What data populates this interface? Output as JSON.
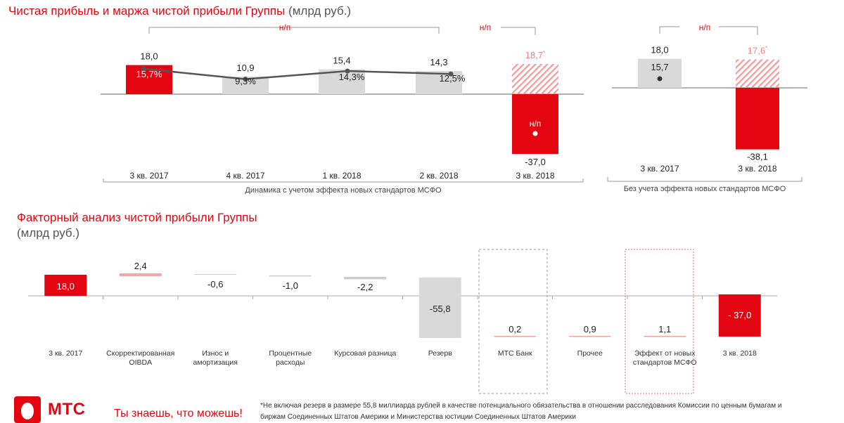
{
  "chart1": {
    "title": "Чистая прибыль и маржа чистой прибыли Группы",
    "unit": "(млрд руб.)",
    "np_label": "н/п",
    "footnote_mark": "*",
    "categories": [
      "3 кв. 2017",
      "4 кв. 2017",
      "1 кв. 2018",
      "2 кв. 2018",
      "3 кв. 2018"
    ],
    "caption": "Динамика с учетом эффекта новых стандартов МСФО",
    "value_labels": [
      "18,0",
      "10,9",
      "15,4",
      "14,3",
      "-37,0"
    ],
    "margin_labels": [
      "15,7%",
      "9,3%",
      "14,3%",
      "12,5%",
      "н/п"
    ],
    "ghost_label": "18,7",
    "colors": {
      "red": "#e30611",
      "gray": "#d9d9d9",
      "line": "#555555",
      "ghost": "#f08080"
    }
  },
  "chart2": {
    "categories": [
      "3 кв. 2017",
      "3 кв. 2018"
    ],
    "caption": "Без учета эффекта новых стандартов МСФО",
    "value_labels": [
      "18,0",
      "-38,1"
    ],
    "inner_labels": [
      "15,7"
    ],
    "ghost_label": "17,6"
  },
  "chart_data": [
    {
      "type": "bar",
      "title": "Чистая прибыль и маржа чистой прибыли Группы (млрд руб.)",
      "categories": [
        "3 кв. 2017",
        "4 кв. 2017",
        "1 кв. 2018",
        "2 кв. 2018",
        "3 кв. 2018"
      ],
      "series": [
        {
          "name": "",
          "values": [
            18.0,
            10.9,
            15.4,
            14.3,
            -37.0
          ]
        },
        {
          "name": "",
          "values": [
            15.7,
            9.3,
            14.3,
            12.5,
            null
          ]
        }
      ],
      "excluded_provision_profit": {
        "category": "3 кв. 2018",
        "value": 18.7
      },
      "xlabel": "Динамика с учетом эффекта новых стандартов МСФО"
    },
    {
      "type": "bar",
      "categories": [
        "3 кв. 2017",
        "3 кв. 2018"
      ],
      "series": [
        {
          "name": "",
          "values": [
            18.0,
            -38.1
          ]
        }
      ],
      "excluded_provision_profit": {
        "category": "3 кв. 2018",
        "value": 17.6
      },
      "xlabel": "Без учета эффекта новых стандартов МСФО"
    },
    {
      "type": "bar",
      "title": "Факторный анализ чистой прибыли Группы (млрд руб.)",
      "categories": [
        "3 кв. 2017",
        "Скорректированная OIBDA",
        "Износ и амортизация",
        "Процентные расходы",
        "Курсовая разница",
        "Резерв",
        "МТС Банк",
        "Прочее",
        "Эффект от новых стандартов МСФО",
        "3 кв. 2018"
      ],
      "values": [
        18.0,
        2.4,
        -0.6,
        -1.0,
        -2.2,
        -55.8,
        0.2,
        0.9,
        1.1,
        -37.0
      ]
    }
  ],
  "waterfall": {
    "title": "Факторный анализ чистой прибыли Группы",
    "unit": "(млрд руб.)",
    "labels": [
      "3 кв. 2017",
      "Скорректированная OIBDA",
      "Износ и амортизация",
      "Процентные расходы",
      "Курсовая разница",
      "Резерв",
      "МТС Банк",
      "Прочее",
      "Эффект от новых стандартов МСФО",
      "3 кв. 2018"
    ],
    "label_lines": [
      [
        "3 кв. 2017"
      ],
      [
        "Скорректированная",
        "OIBDA"
      ],
      [
        "Износ и",
        "амортизация"
      ],
      [
        "Процентные",
        "расходы"
      ],
      [
        "Курсовая разница"
      ],
      [
        "Резерв"
      ],
      [
        "МТС Банк"
      ],
      [
        "Прочее"
      ],
      [
        "Эффект от новых",
        "стандартов МСФО"
      ],
      [
        "3 кв. 2018"
      ]
    ],
    "value_labels": [
      "18,0",
      "2,4",
      "-0,6",
      "-1,0",
      "-2,2",
      "-55,8",
      "0,2",
      "0,9",
      "1,1",
      "- 37,0"
    ]
  },
  "footer": {
    "logo_text": "МТС",
    "slogan": "Ты знаешь, что можешь!",
    "footnote_line1": "*Не включая резерв в размере 55,8 миллиарда рублей в качестве потенциального обязательства в отношении расследования Комиссии по ценным бумагам и",
    "footnote_line2": "биржам Соединенных Штатов Америки и Министерства юстиции Соединенных Штатов Америки"
  }
}
